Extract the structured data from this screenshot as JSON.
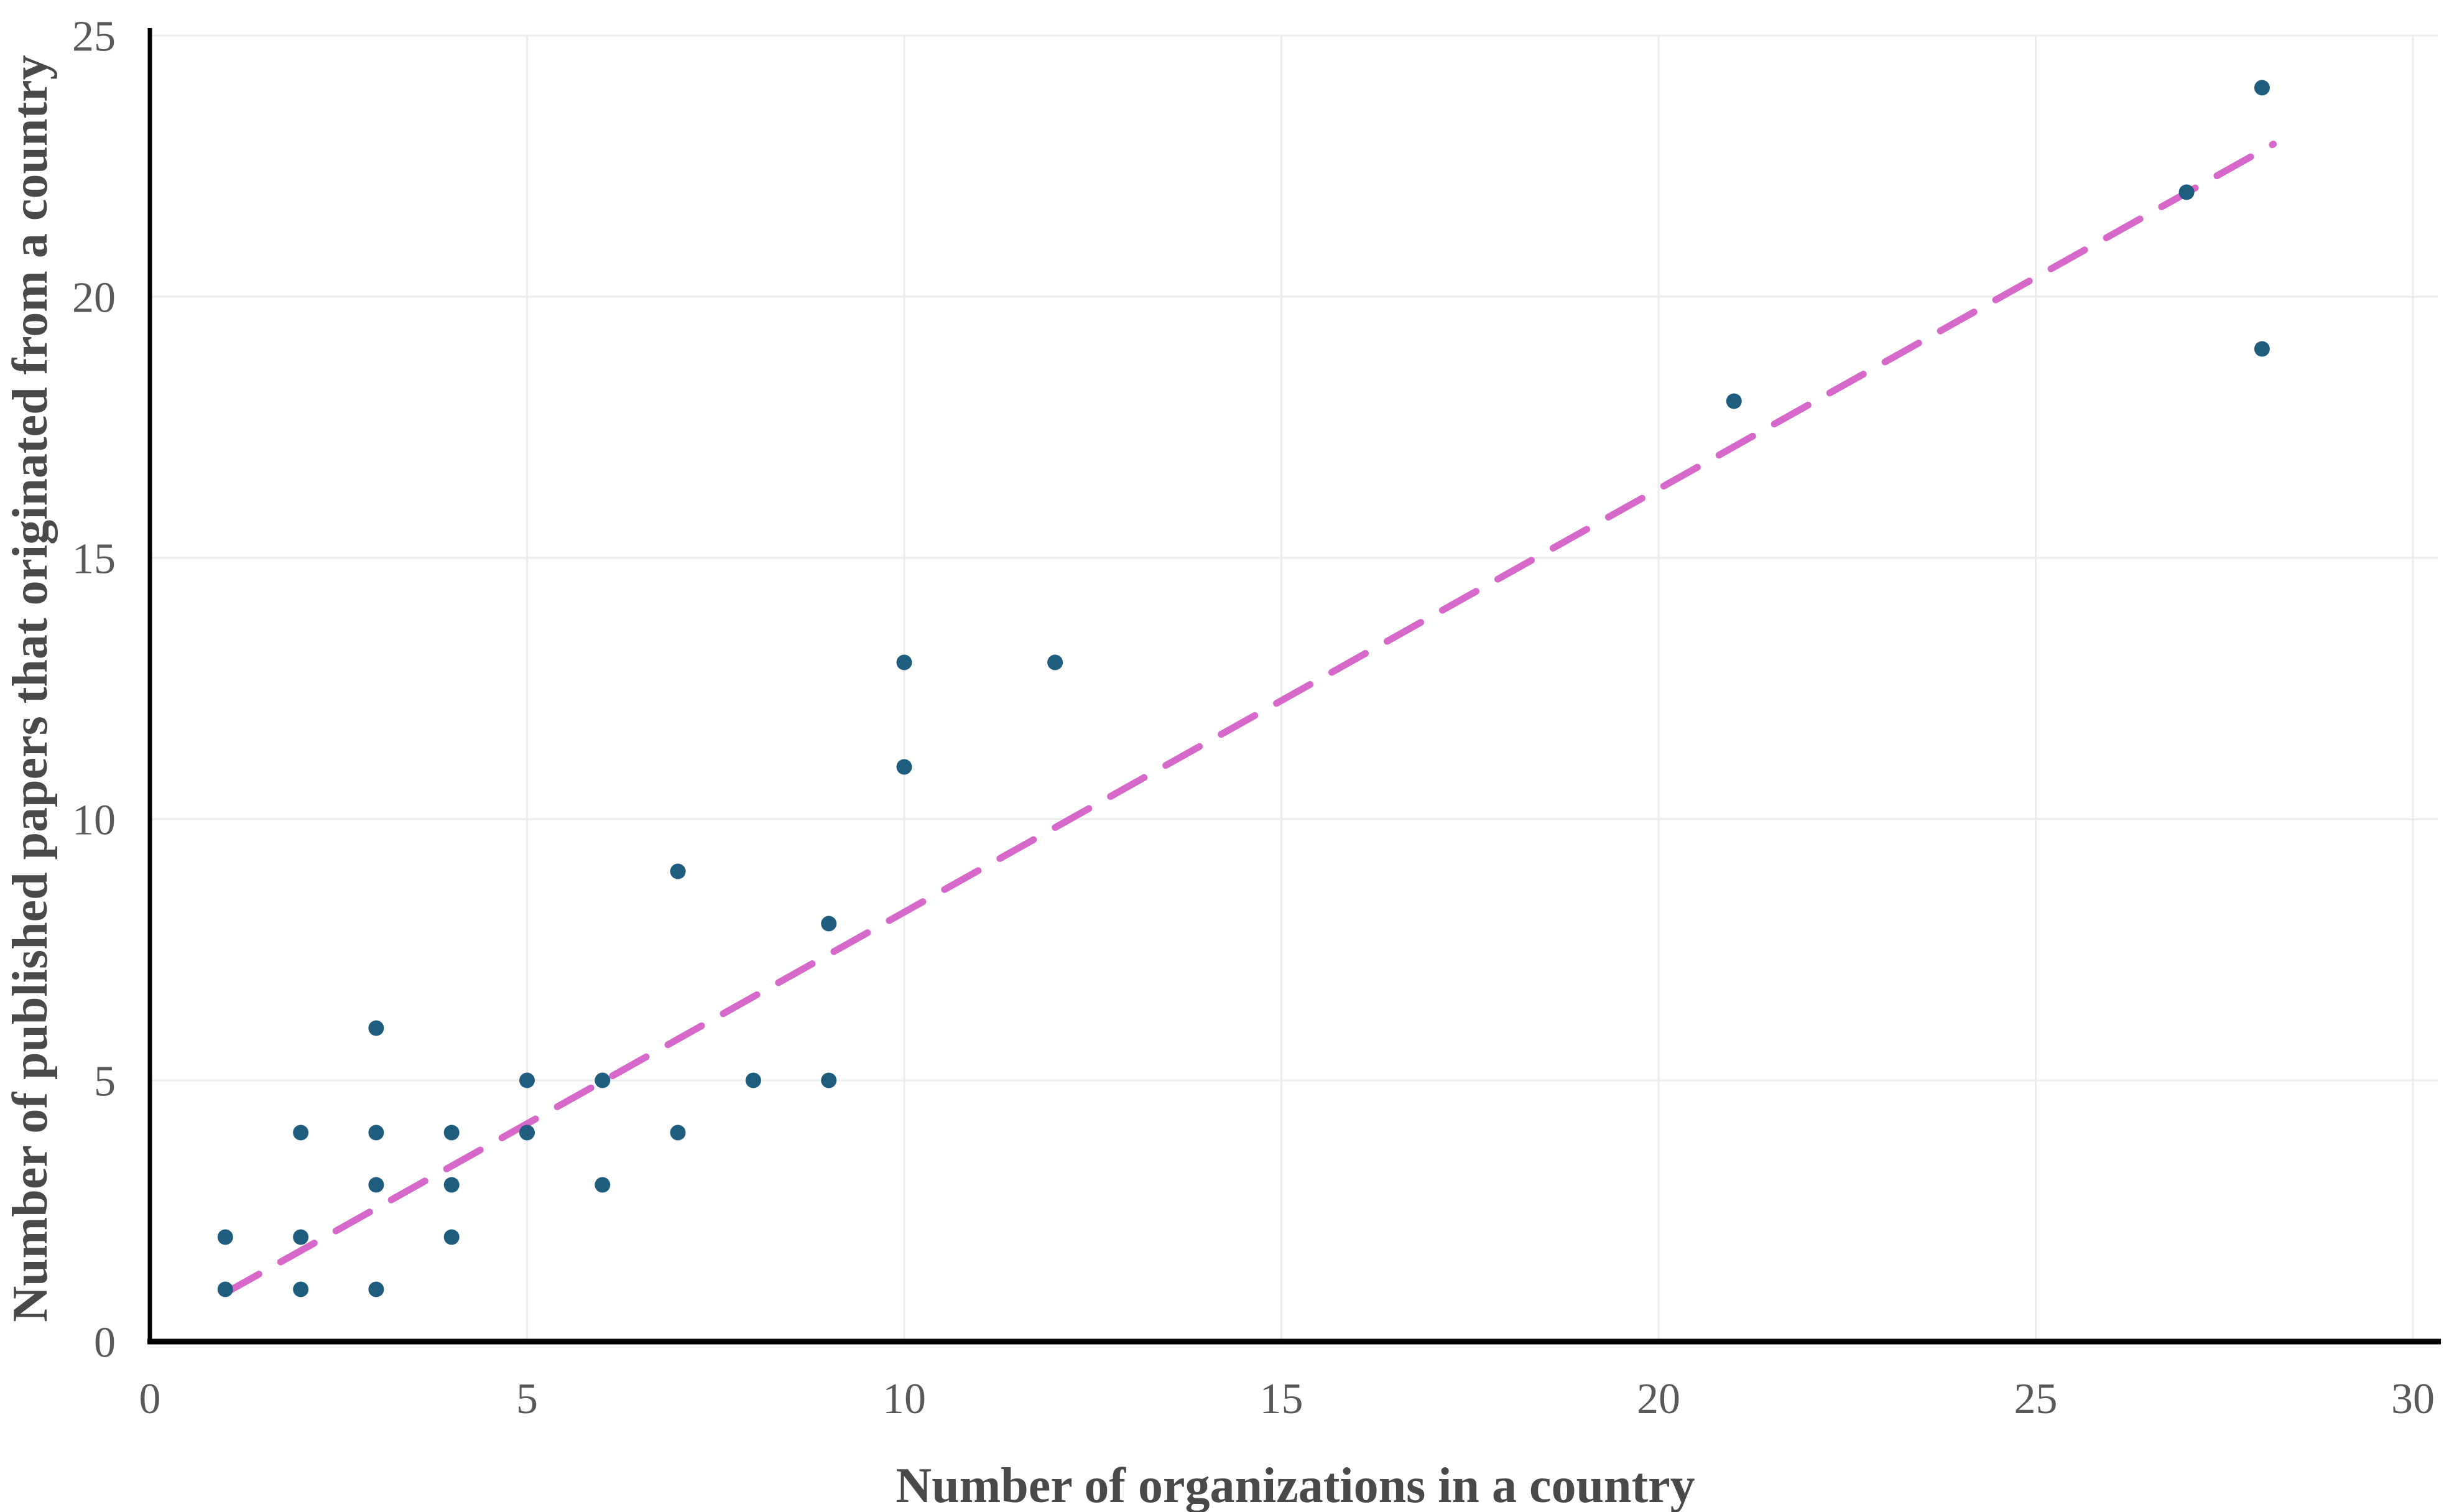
{
  "chart_data": {
    "type": "scatter",
    "title": "",
    "xlabel": "Number of organizations in a country",
    "ylabel": "Number of published papers that originated from a country",
    "xlim": [
      0,
      30
    ],
    "ylim": [
      0,
      25
    ],
    "xticks": [
      0,
      5,
      10,
      15,
      20,
      25,
      30
    ],
    "yticks": [
      0,
      5,
      10,
      15,
      20,
      25
    ],
    "grid": "both-axes, every 5 units, light gray",
    "legend_position": "none",
    "points": [
      [
        1,
        1
      ],
      [
        1,
        2
      ],
      [
        2,
        1
      ],
      [
        2,
        2
      ],
      [
        2,
        4
      ],
      [
        3,
        1
      ],
      [
        3,
        3
      ],
      [
        3,
        4
      ],
      [
        3,
        6
      ],
      [
        4,
        2
      ],
      [
        4,
        3
      ],
      [
        4,
        4
      ],
      [
        5,
        4
      ],
      [
        5,
        5
      ],
      [
        6,
        3
      ],
      [
        6,
        5
      ],
      [
        7,
        4
      ],
      [
        7,
        9
      ],
      [
        8,
        5
      ],
      [
        9,
        5
      ],
      [
        9,
        8
      ],
      [
        10,
        11
      ],
      [
        10,
        13
      ],
      [
        12,
        13
      ],
      [
        21,
        18
      ],
      [
        27,
        22
      ],
      [
        28,
        24
      ],
      [
        28,
        19
      ]
    ],
    "trendline": {
      "style": "dashed",
      "x1": 1,
      "y1": 0.93,
      "x2": 28.15,
      "y2": 22.92,
      "slope_approx": 0.81,
      "intercept_approx": 0.12
    },
    "colors": {
      "point": "#1F5D7E",
      "trend": "#D668C9",
      "grid": "#ECECEC",
      "axis": "#000000",
      "tick_text": "#595959",
      "title_text": "#494949"
    }
  }
}
